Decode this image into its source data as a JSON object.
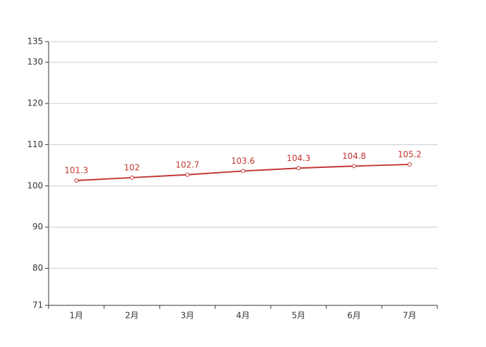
{
  "chart_data": {
    "type": "line",
    "categories": [
      "1月",
      "2月",
      "3月",
      "4月",
      "5月",
      "6月",
      "7月"
    ],
    "values": [
      101.3,
      102,
      102.7,
      103.6,
      104.3,
      104.8,
      105.2
    ],
    "color": "#c23531",
    "ylim": [
      71,
      135
    ],
    "yticks": [
      71,
      80,
      90,
      100,
      110,
      120,
      130,
      135
    ],
    "grid": true
  }
}
